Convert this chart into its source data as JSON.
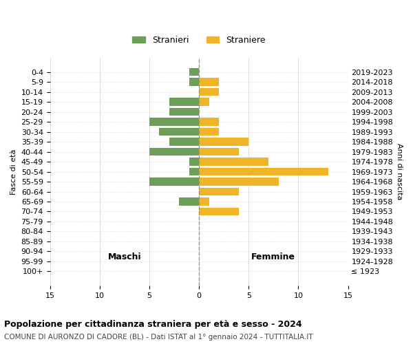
{
  "age_groups": [
    "100+",
    "95-99",
    "90-94",
    "85-89",
    "80-84",
    "75-79",
    "70-74",
    "65-69",
    "60-64",
    "55-59",
    "50-54",
    "45-49",
    "40-44",
    "35-39",
    "30-34",
    "25-29",
    "20-24",
    "15-19",
    "10-14",
    "5-9",
    "0-4"
  ],
  "birth_years": [
    "≤ 1923",
    "1924-1928",
    "1929-1933",
    "1934-1938",
    "1939-1943",
    "1944-1948",
    "1949-1953",
    "1954-1958",
    "1959-1963",
    "1964-1968",
    "1969-1973",
    "1974-1978",
    "1979-1983",
    "1984-1988",
    "1989-1993",
    "1994-1998",
    "1999-2003",
    "2004-2008",
    "2009-2013",
    "2014-2018",
    "2019-2023"
  ],
  "males": [
    0,
    0,
    0,
    0,
    0,
    0,
    0,
    2,
    0,
    5,
    1,
    1,
    5,
    3,
    4,
    5,
    3,
    3,
    0,
    1,
    1
  ],
  "females": [
    0,
    0,
    0,
    0,
    0,
    0,
    4,
    1,
    4,
    8,
    13,
    7,
    4,
    5,
    2,
    2,
    0,
    1,
    2,
    2,
    0
  ],
  "male_color": "#6d9e5a",
  "female_color": "#f0b429",
  "background_color": "#ffffff",
  "grid_color": "#cccccc",
  "title": "Popolazione per cittadinanza straniera per età e sesso - 2024",
  "subtitle": "COMUNE DI AURONZO DI CADORE (BL) - Dati ISTAT al 1° gennaio 2024 - TUTTITALIA.IT",
  "xlabel_left": "Maschi",
  "xlabel_right": "Femmine",
  "ylabel_left": "Fasce di età",
  "ylabel_right": "Anni di nascita",
  "legend_male": "Stranieri",
  "legend_female": "Straniere",
  "xlim": 15,
  "bar_height": 0.8
}
